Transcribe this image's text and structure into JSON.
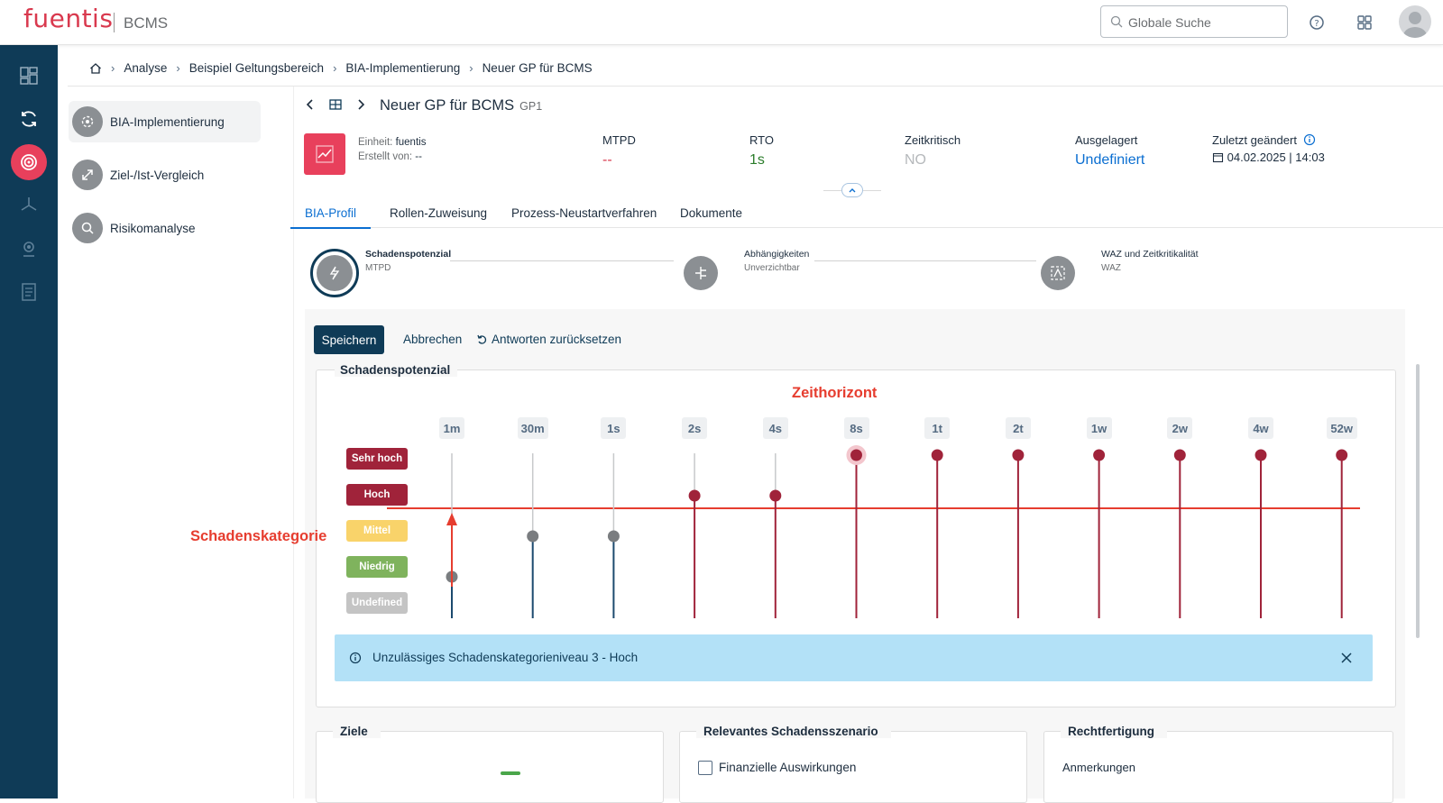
{
  "app": {
    "logo": "fuentis",
    "product": "BCMS"
  },
  "search": {
    "placeholder": "Globale Suche"
  },
  "breadcrumb": [
    "Analyse",
    "Beispiel Geltungsbereich",
    "BIA-Implementierung",
    "Neuer GP für BCMS"
  ],
  "subnav": {
    "items": [
      {
        "label": "BIA-Implementierung",
        "icon": "gear-cycle-icon"
      },
      {
        "label": "Ziel-/Ist-Vergleich",
        "icon": "arrows-icon"
      },
      {
        "label": "Risikomanalyse",
        "icon": "magnifier-icon"
      }
    ]
  },
  "header": {
    "title": "Neuer GP für BCMS",
    "id": "GP1",
    "einheit_label": "Einheit:",
    "einheit_value": "fuentis",
    "erstellt_label": "Erstellt von:",
    "erstellt_value": "--"
  },
  "kpis": {
    "mtpd": {
      "label": "MTPD",
      "value": "--"
    },
    "rto": {
      "label": "RTO",
      "value": "1s"
    },
    "zeitkritisch": {
      "label": "Zeitkritisch",
      "value": "NO"
    },
    "ausgelagert": {
      "label": "Ausgelagert",
      "value": "Undefiniert"
    },
    "zuletzt": {
      "label": "Zuletzt geändert",
      "value": "04.02.2025 | 14:03"
    }
  },
  "tabs": [
    "BIA-Profil",
    "Rollen-Zuweisung",
    "Prozess-Neustartverfahren",
    "Dokumente"
  ],
  "steps": [
    {
      "title": "Schadenspotenzial",
      "sub": "MTPD"
    },
    {
      "title": "Abhängigkeiten",
      "sub": "Unverzichtbar"
    },
    {
      "title": "WAZ und Zeitkritikalität",
      "sub": "WAZ"
    }
  ],
  "actions": {
    "save": "Speichern",
    "cancel": "Abbrechen",
    "reset": "Antworten zurücksetzen"
  },
  "section": {
    "title": "Schadenspotenzial"
  },
  "annotations": {
    "zeithorizont": "Zeithorizont",
    "schadenskategorie": "Schadenskategorie"
  },
  "matrix": {
    "categories": [
      {
        "label": "Sehr hoch",
        "color": "#a0233a"
      },
      {
        "label": "Hoch",
        "color": "#a0233a"
      },
      {
        "label": "Mittel",
        "color": "#f9d36a"
      },
      {
        "label": "Niedrig",
        "color": "#7fb35d"
      },
      {
        "label": "Undefined",
        "color": "#c4c4c4"
      }
    ],
    "time_labels": [
      "1m",
      "30m",
      "1s",
      "2s",
      "4s",
      "8s",
      "1t",
      "2t",
      "1w",
      "2w",
      "4w",
      "52w"
    ],
    "levels": [
      1,
      2,
      2,
      3,
      3,
      4,
      4,
      4,
      4,
      4,
      4,
      4
    ],
    "level_note": "levels: 0=Undefined,1=Niedrig,2=Mittel,3=Hoch,4=Sehr hoch"
  },
  "alert": {
    "text": "Unzulässiges Schadenskategorieniveau 3 - Hoch"
  },
  "bottom_boxes": [
    {
      "title": "Ziele"
    },
    {
      "title": "Relevantes Schadensszenario",
      "checkbox": "Finanzielle Auswirkungen"
    },
    {
      "title": "Rechtfertigung",
      "field": "Anmerkungen"
    }
  ]
}
